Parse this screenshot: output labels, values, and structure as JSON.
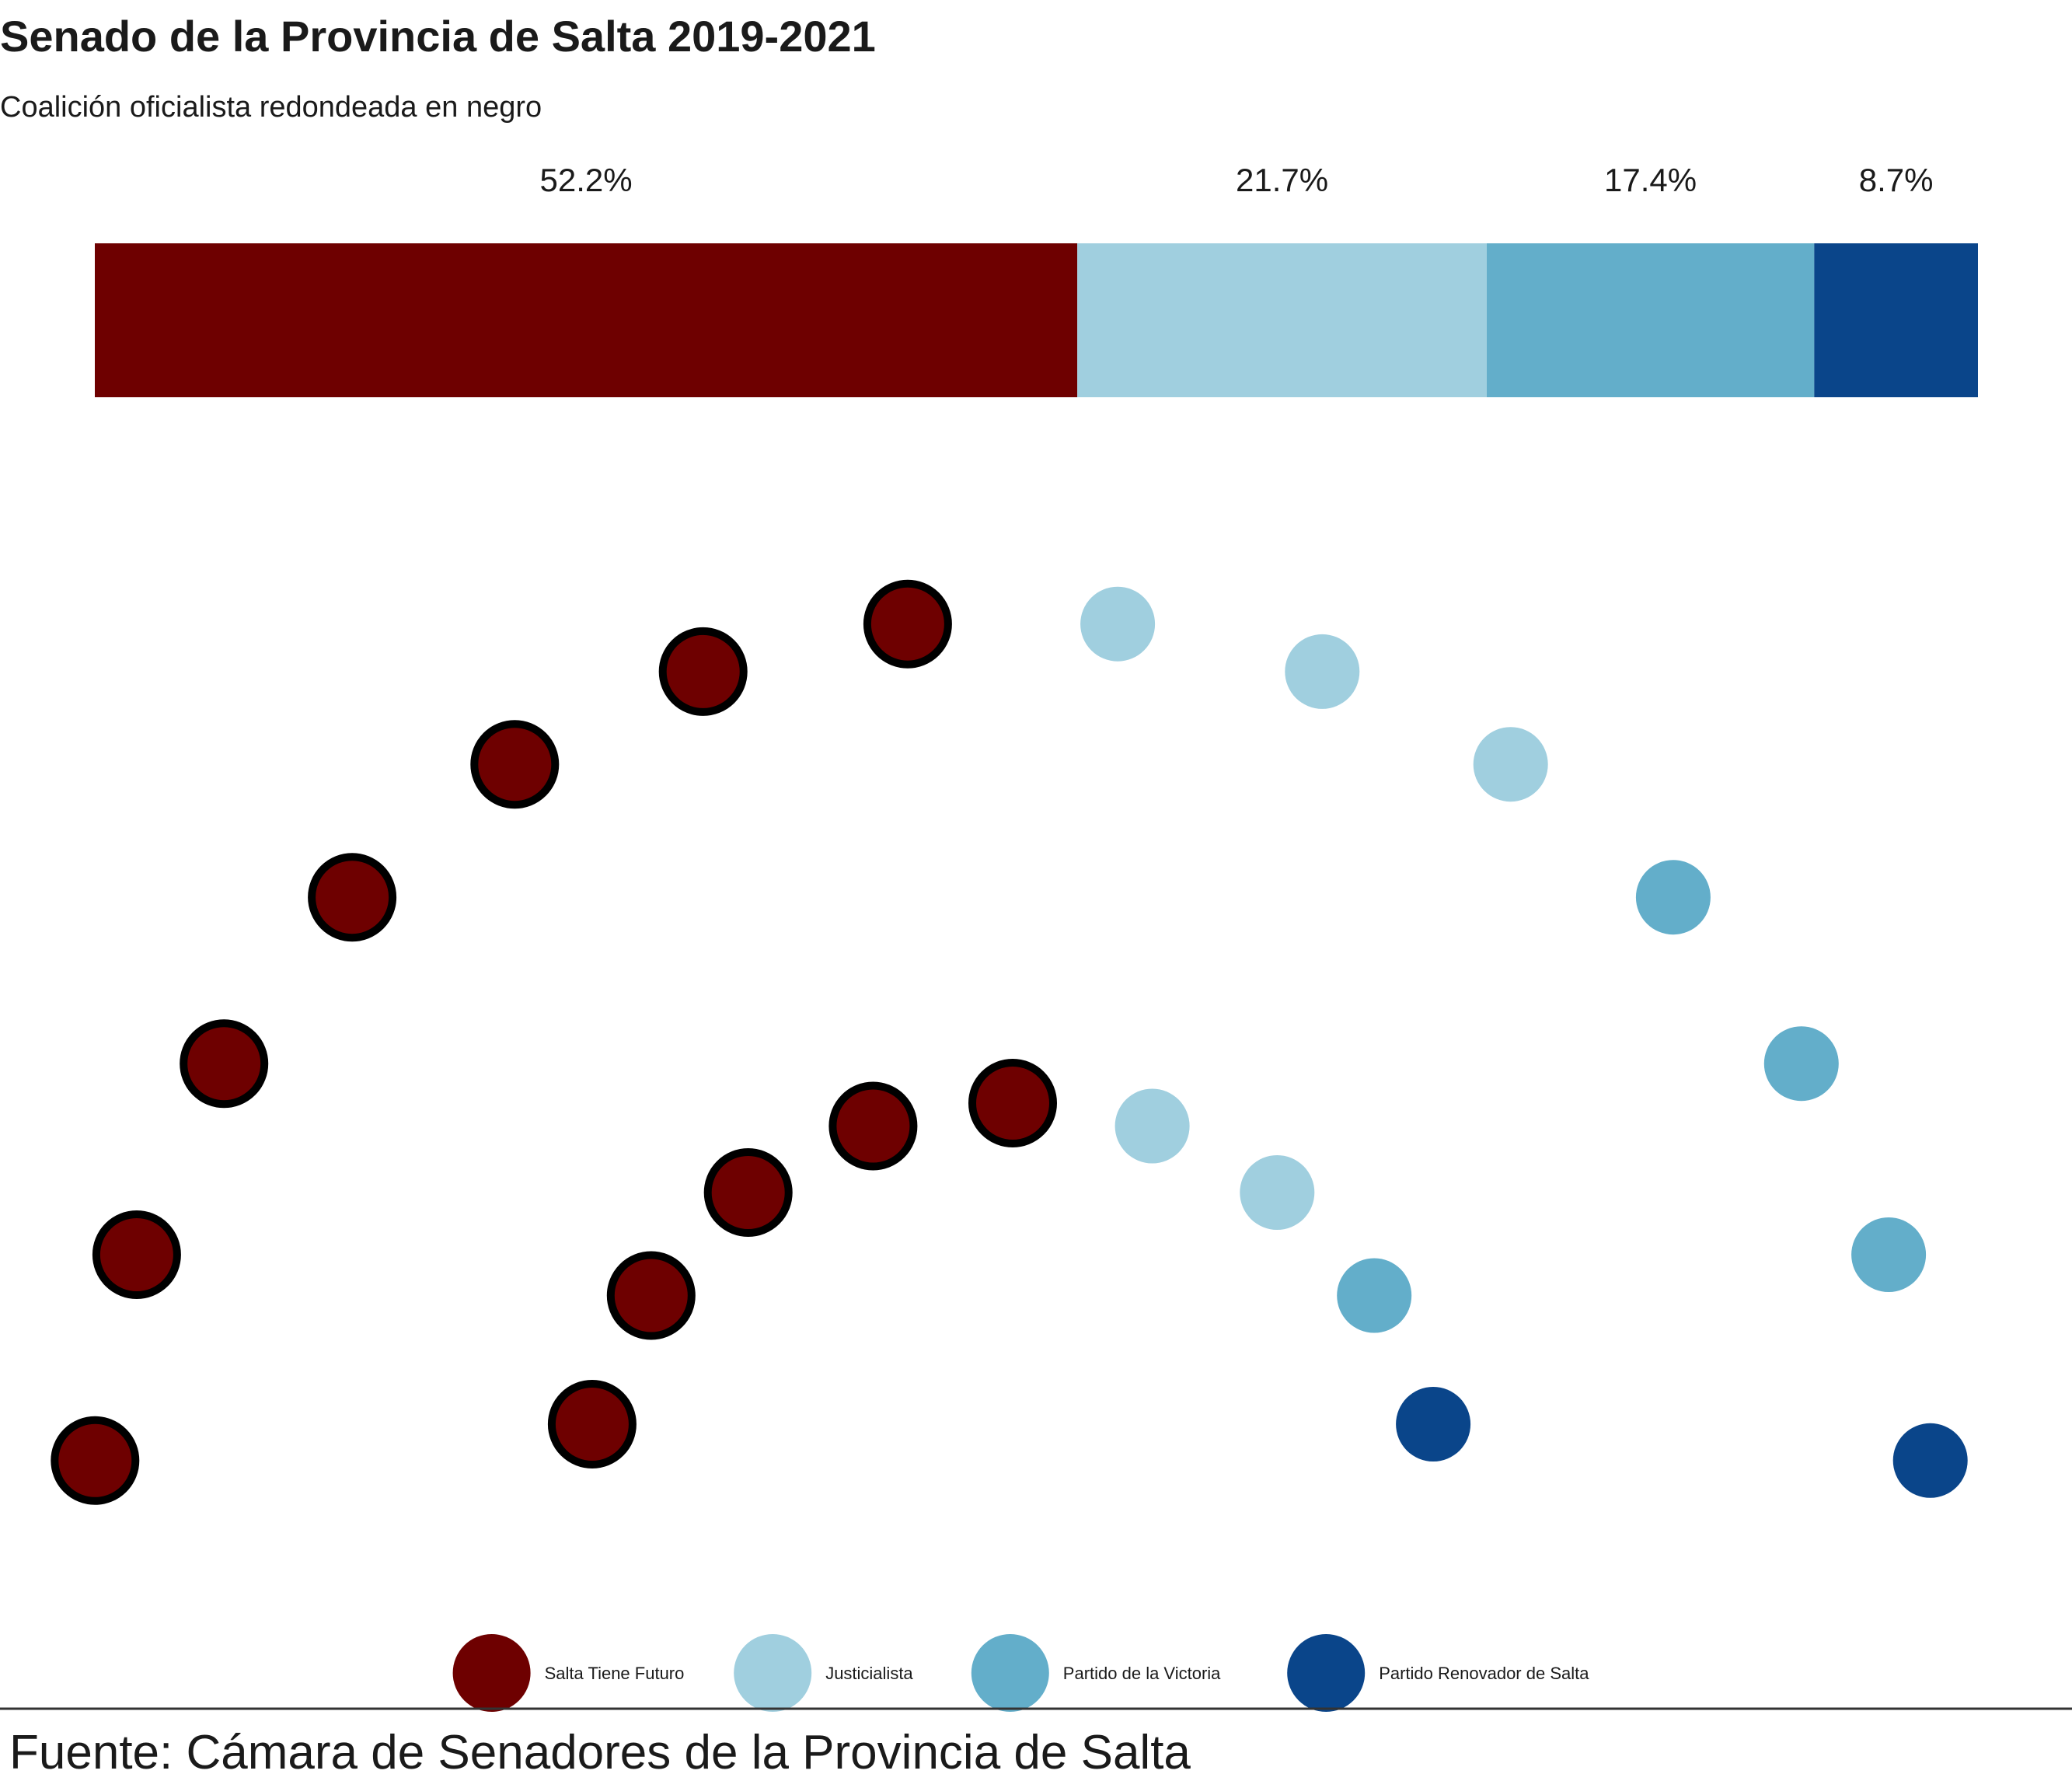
{
  "chart_data": {
    "type": "parliament",
    "title": "Senado de la Provincia de Salta 2019-2021",
    "subtitle": "Coalición oficialista redondeada en negro",
    "caption": "Fuente: Cámara de Senadores de la Provincia de Salta",
    "total_seats": 23,
    "parties": [
      {
        "name": "Salta Tiene Futuro",
        "seats": 12,
        "share_label": "52.2%",
        "color": "#6E0000",
        "government": true
      },
      {
        "name": "Justicialista",
        "seats": 5,
        "share_label": "21.7%",
        "color": "#A0CFDF",
        "government": false
      },
      {
        "name": "Partido de la Victoria",
        "seats": 4,
        "share_label": "17.4%",
        "color": "#63AECA",
        "government": false
      },
      {
        "name": "Partido Renovador de Salta",
        "seats": 2,
        "share_label": "8.7%",
        "color": "#0A458A",
        "government": false
      }
    ],
    "government_outline_color": "#000000",
    "legend_position": "bottom"
  }
}
